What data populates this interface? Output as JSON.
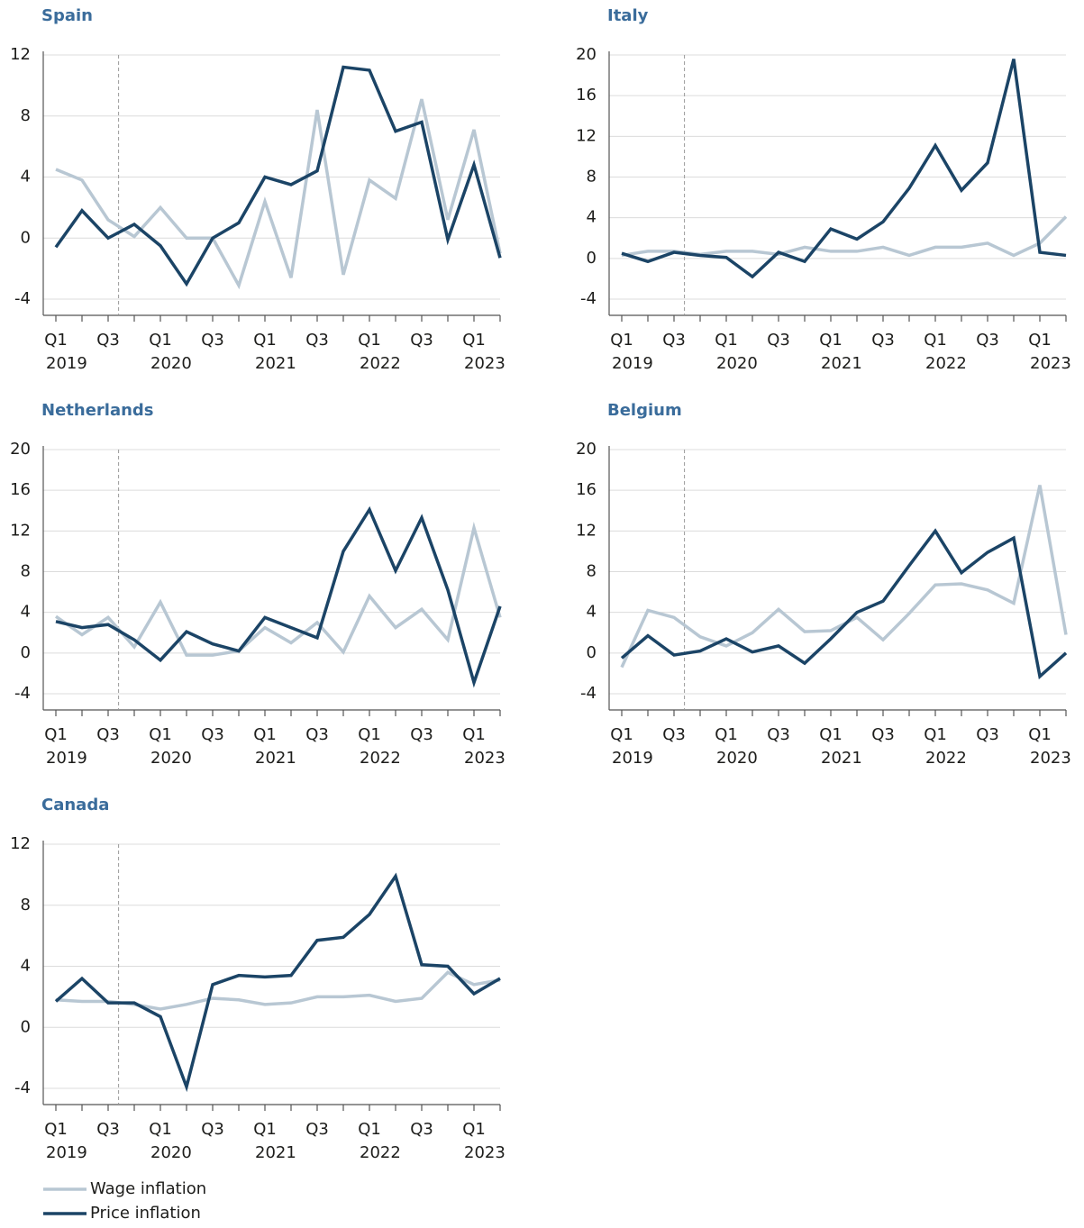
{
  "chart_data": [
    {
      "type": "line",
      "title": "Spain",
      "categories": [
        "Q1",
        null,
        "Q3",
        null,
        "Q1",
        null,
        "Q3",
        null,
        "Q1",
        null,
        "Q3",
        null,
        "Q1",
        null,
        "Q3",
        null,
        "Q1",
        null
      ],
      "years": [
        "2019",
        null,
        null,
        null,
        "2020",
        null,
        null,
        null,
        "2021",
        null,
        null,
        null,
        "2022",
        null,
        null,
        null,
        "2023",
        null
      ],
      "ylim": [
        -4,
        12
      ],
      "yticks": [
        -4,
        0,
        4,
        8,
        12
      ],
      "grid": true,
      "series": [
        {
          "color": "#b8c7d3",
          "values": [
            4.5,
            3.8,
            1.2,
            0.1,
            2.0,
            0,
            0,
            -3.1,
            2.4,
            -2.6,
            8.4,
            -2.4,
            3.8,
            2.6,
            9.1,
            1.2,
            7.1,
            -1.0
          ]
        },
        {
          "color": "#1b4466",
          "values": [
            -0.6,
            1.8,
            0,
            0.9,
            -0.5,
            -3.0,
            0,
            1.0,
            4.0,
            3.5,
            4.4,
            11.2,
            11.0,
            7.0,
            7.6,
            -0.1,
            4.8,
            -1.3
          ]
        }
      ]
    },
    {
      "type": "line",
      "title": "Italy",
      "categories": [
        "Q1",
        null,
        "Q3",
        null,
        "Q1",
        null,
        "Q3",
        null,
        "Q1",
        null,
        "Q3",
        null,
        "Q1",
        null,
        "Q3",
        null,
        "Q1",
        null
      ],
      "years": [
        "2019",
        null,
        null,
        null,
        "2020",
        null,
        null,
        null,
        "2021",
        null,
        null,
        null,
        "2022",
        null,
        null,
        null,
        "2023",
        null
      ],
      "ylim": [
        -4,
        20
      ],
      "yticks": [
        -4,
        0,
        4,
        8,
        12,
        16,
        20
      ],
      "grid": true,
      "series": [
        {
          "color": "#b8c7d3",
          "values": [
            0.3,
            0.7,
            0.7,
            0.4,
            0.7,
            0.7,
            0.4,
            1.1,
            0.7,
            0.7,
            1.1,
            0.3,
            1.1,
            1.1,
            1.5,
            0.3,
            1.5,
            4.1
          ]
        },
        {
          "color": "#1b4466",
          "values": [
            0.5,
            -0.3,
            0.6,
            0.3,
            0.1,
            -1.8,
            0.6,
            -0.3,
            2.9,
            1.9,
            3.6,
            6.9,
            11.1,
            6.7,
            9.4,
            19.6,
            0.6,
            0.3
          ]
        }
      ]
    },
    {
      "type": "line",
      "title": "Netherlands",
      "categories": [
        "Q1",
        null,
        "Q3",
        null,
        "Q1",
        null,
        "Q3",
        null,
        "Q1",
        null,
        "Q3",
        null,
        "Q1",
        null,
        "Q3",
        null,
        "Q1",
        null
      ],
      "years": [
        "2019",
        null,
        null,
        null,
        "2020",
        null,
        null,
        null,
        "2021",
        null,
        null,
        null,
        "2022",
        null,
        null,
        null,
        "2023",
        null
      ],
      "ylim": [
        -4,
        20
      ],
      "yticks": [
        -4,
        0,
        4,
        8,
        12,
        16,
        20
      ],
      "grid": true,
      "series": [
        {
          "color": "#b8c7d3",
          "values": [
            3.6,
            1.8,
            3.5,
            0.6,
            5.0,
            -0.2,
            -0.2,
            0.2,
            2.5,
            1.0,
            3.0,
            0.1,
            5.6,
            2.5,
            4.3,
            1.3,
            12.3,
            3.5
          ]
        },
        {
          "color": "#1b4466",
          "values": [
            3.1,
            2.5,
            2.8,
            1.3,
            -0.7,
            2.1,
            0.9,
            0.2,
            3.5,
            2.5,
            1.5,
            10.0,
            14.1,
            8.1,
            13.3,
            6.2,
            -2.9,
            4.6
          ]
        }
      ]
    },
    {
      "type": "line",
      "title": "Belgium",
      "categories": [
        "Q1",
        null,
        "Q3",
        null,
        "Q1",
        null,
        "Q3",
        null,
        "Q1",
        null,
        "Q3",
        null,
        "Q1",
        null,
        "Q3",
        null,
        "Q1",
        null
      ],
      "years": [
        "2019",
        null,
        null,
        null,
        "2020",
        null,
        null,
        null,
        "2021",
        null,
        null,
        null,
        "2022",
        null,
        null,
        null,
        "2023",
        null
      ],
      "ylim": [
        -4,
        20
      ],
      "yticks": [
        -4,
        0,
        4,
        8,
        12,
        16,
        20
      ],
      "grid": true,
      "series": [
        {
          "color": "#b8c7d3",
          "values": [
            -1.4,
            4.2,
            3.5,
            1.6,
            0.7,
            2.0,
            4.3,
            2.1,
            2.2,
            3.5,
            1.3,
            3.9,
            6.7,
            6.8,
            6.2,
            4.9,
            16.5,
            1.8
          ]
        },
        {
          "color": "#1b4466",
          "values": [
            -0.5,
            1.7,
            -0.2,
            0.2,
            1.4,
            0.1,
            0.7,
            -1.0,
            1.4,
            4.0,
            5.1,
            8.6,
            12.0,
            7.9,
            9.9,
            11.3,
            -2.3,
            0.0
          ]
        }
      ]
    },
    {
      "type": "line",
      "title": "Canada",
      "categories": [
        "Q1",
        null,
        "Q3",
        null,
        "Q1",
        null,
        "Q3",
        null,
        "Q1",
        null,
        "Q3",
        null,
        "Q1",
        null,
        "Q3",
        null,
        "Q1",
        null
      ],
      "years": [
        "2019",
        null,
        null,
        null,
        "2020",
        null,
        null,
        null,
        "2021",
        null,
        null,
        null,
        "2022",
        null,
        null,
        null,
        "2023",
        null
      ],
      "ylim": [
        -4,
        12
      ],
      "yticks": [
        -4,
        0,
        4,
        8,
        12
      ],
      "grid": true,
      "legend": "bottom-left",
      "series": [
        {
          "name": "Wage inflation",
          "color": "#b8c7d3",
          "values": [
            1.8,
            1.7,
            1.7,
            1.5,
            1.2,
            1.5,
            1.9,
            1.8,
            1.5,
            1.6,
            2.0,
            2.0,
            2.1,
            1.7,
            1.9,
            3.6,
            2.8,
            3.1
          ]
        },
        {
          "name": "Price inflation",
          "color": "#1b4466",
          "values": [
            1.7,
            3.2,
            1.6,
            1.6,
            0.7,
            -3.9,
            2.8,
            3.4,
            3.3,
            3.4,
            5.7,
            5.9,
            7.4,
            9.9,
            4.1,
            4.0,
            2.2,
            3.2
          ]
        }
      ]
    }
  ]
}
